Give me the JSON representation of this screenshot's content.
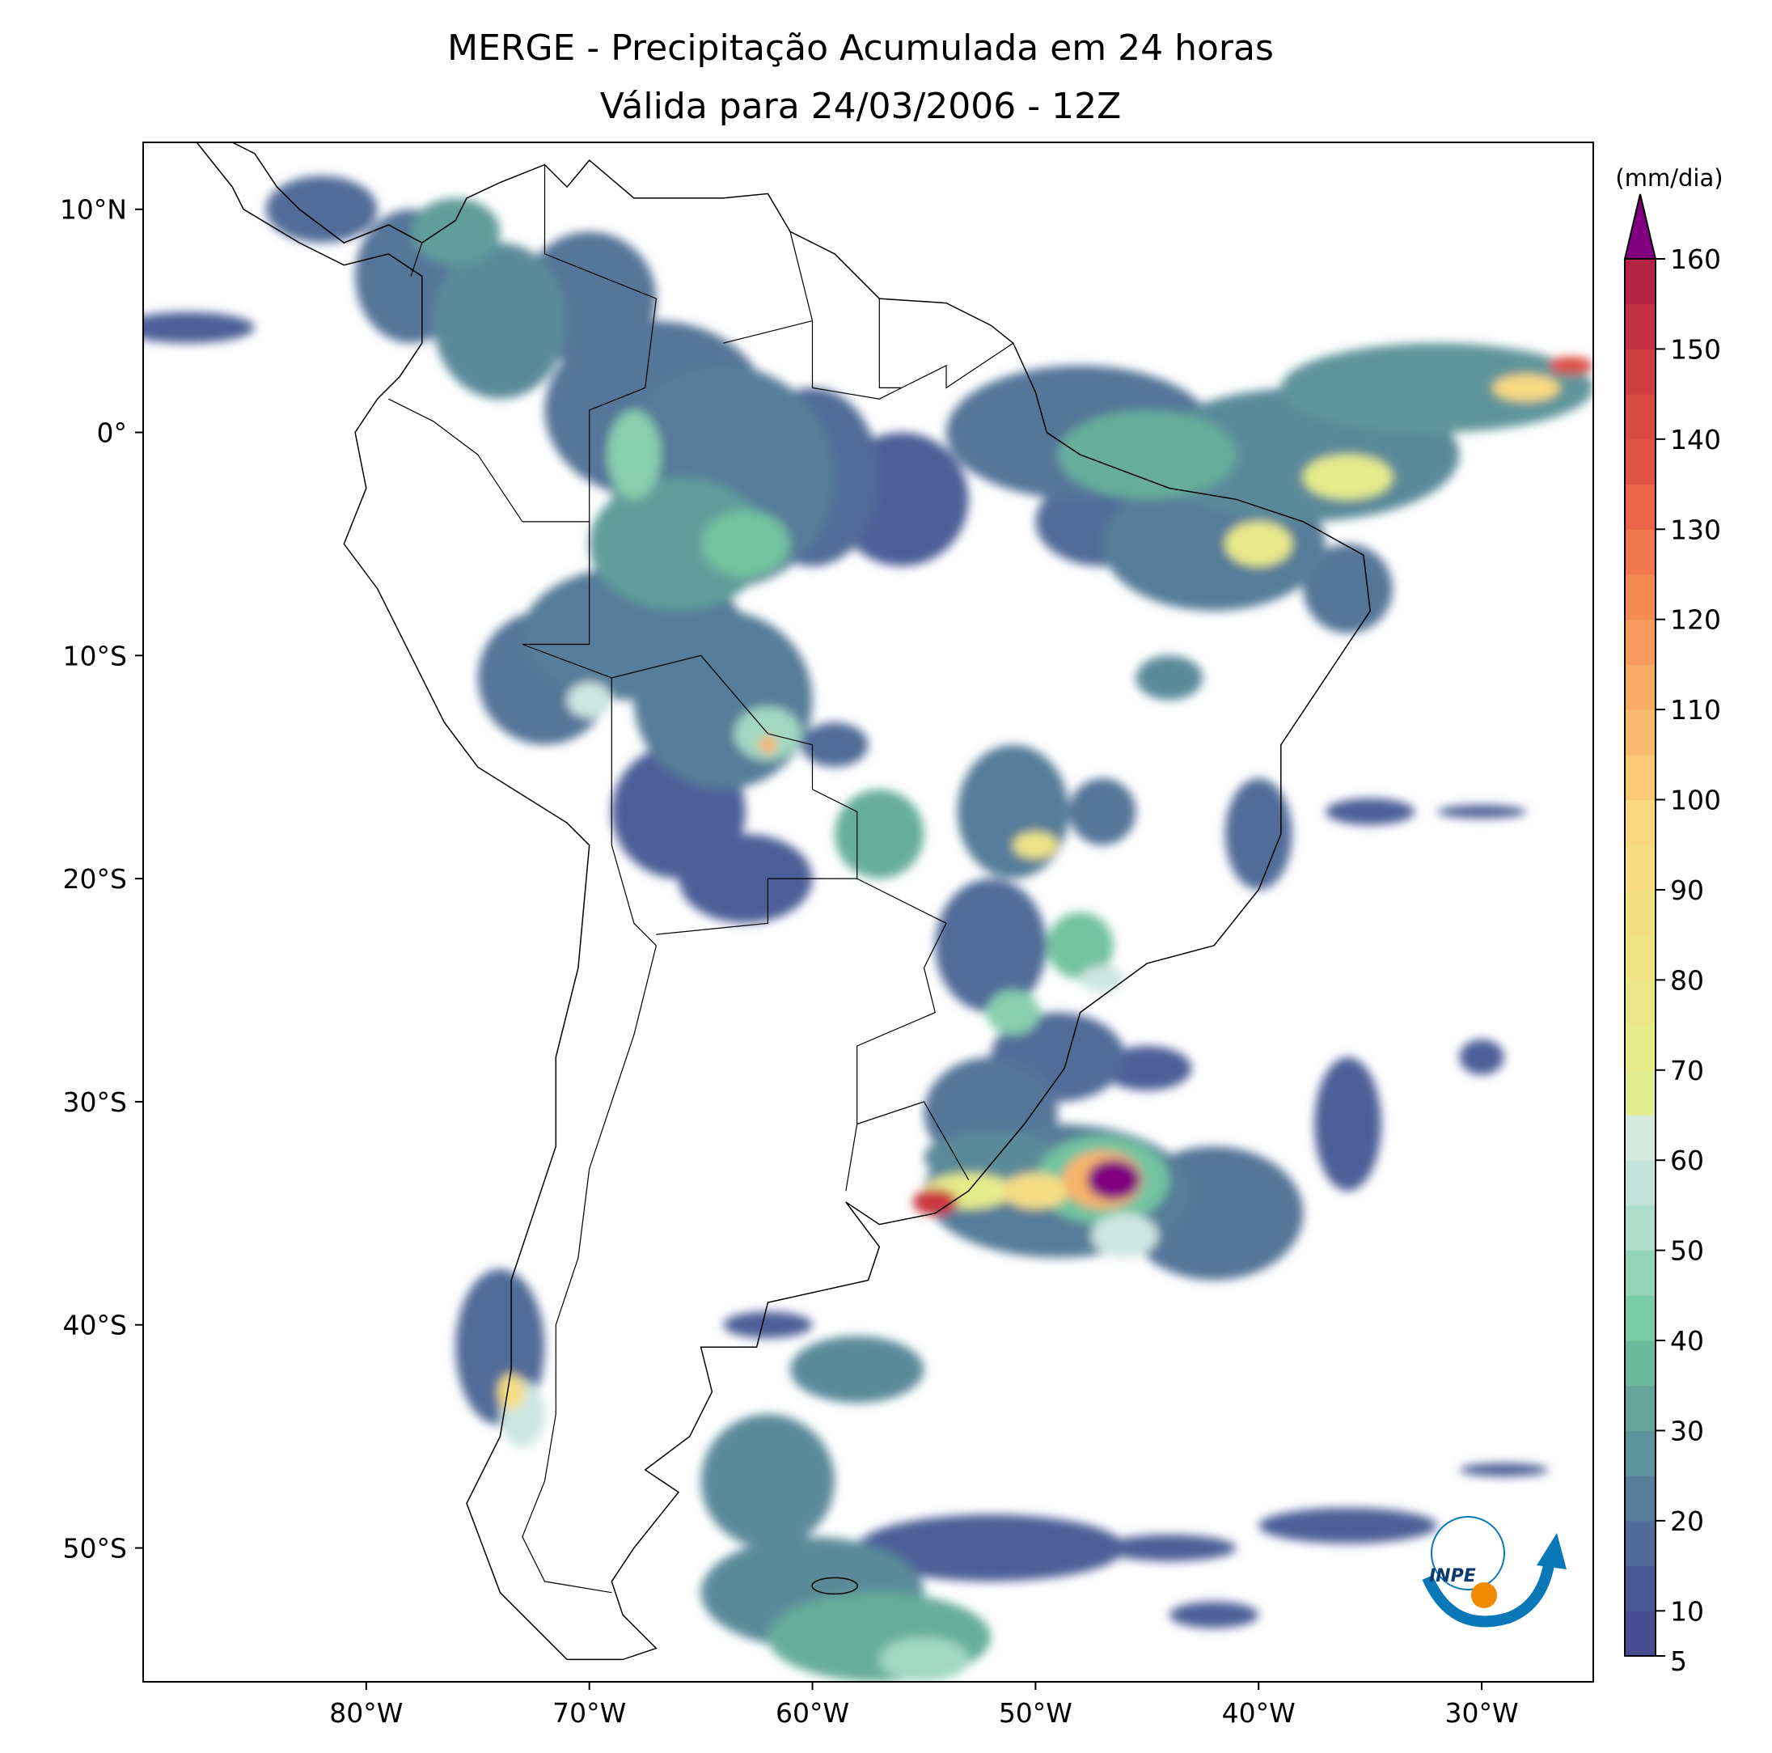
{
  "title": {
    "line1": "MERGE - Precipitação Acumulada em 24 horas",
    "line2": "Válida para 24/03/2006 - 12Z"
  },
  "map": {
    "lon_range": [
      -90,
      -25
    ],
    "lat_range": [
      -56,
      13
    ],
    "lon_ticks": [
      {
        "value": -80,
        "label": "80°W"
      },
      {
        "value": -70,
        "label": "70°W"
      },
      {
        "value": -60,
        "label": "60°W"
      },
      {
        "value": -50,
        "label": "50°W"
      },
      {
        "value": -40,
        "label": "40°W"
      },
      {
        "value": -30,
        "label": "30°W"
      }
    ],
    "lat_ticks": [
      {
        "value": 10,
        "label": "10°N"
      },
      {
        "value": 0,
        "label": "0°"
      },
      {
        "value": -10,
        "label": "10°S"
      },
      {
        "value": -20,
        "label": "20°S"
      },
      {
        "value": -30,
        "label": "30°S"
      },
      {
        "value": -40,
        "label": "40°S"
      },
      {
        "value": -50,
        "label": "50°S"
      }
    ],
    "logo_text": "INPE"
  },
  "colorbar": {
    "unit": "(mm/dia)",
    "min": 5,
    "max": 160,
    "extend": "max",
    "extend_color": "#800080",
    "ticks": [
      {
        "value": 5,
        "label": "5"
      },
      {
        "value": 10,
        "label": "10"
      },
      {
        "value": 20,
        "label": "20"
      },
      {
        "value": 30,
        "label": "30"
      },
      {
        "value": 40,
        "label": "40"
      },
      {
        "value": 50,
        "label": "50"
      },
      {
        "value": 60,
        "label": "60"
      },
      {
        "value": 70,
        "label": "70"
      },
      {
        "value": 80,
        "label": "80"
      },
      {
        "value": 90,
        "label": "90"
      },
      {
        "value": 100,
        "label": "100"
      },
      {
        "value": 110,
        "label": "110"
      },
      {
        "value": 120,
        "label": "120"
      },
      {
        "value": 130,
        "label": "130"
      },
      {
        "value": 140,
        "label": "140"
      },
      {
        "value": 150,
        "label": "150"
      },
      {
        "value": 160,
        "label": "160"
      }
    ],
    "color_stops": [
      {
        "value": 5,
        "color": "#45448c"
      },
      {
        "value": 15,
        "color": "#4d5f98"
      },
      {
        "value": 25,
        "color": "#5a8a9a"
      },
      {
        "value": 35,
        "color": "#66ae9a"
      },
      {
        "value": 42,
        "color": "#78caa3"
      },
      {
        "value": 52,
        "color": "#acdccb"
      },
      {
        "value": 62,
        "color": "#d5e9e7"
      },
      {
        "value": 68,
        "color": "#e3ee8c"
      },
      {
        "value": 85,
        "color": "#f1e184"
      },
      {
        "value": 97,
        "color": "#fad980"
      },
      {
        "value": 110,
        "color": "#f8b36a"
      },
      {
        "value": 125,
        "color": "#f3824f"
      },
      {
        "value": 135,
        "color": "#e55a46"
      },
      {
        "value": 150,
        "color": "#c9383f"
      },
      {
        "value": 160,
        "color": "#ac1c45"
      }
    ]
  }
}
